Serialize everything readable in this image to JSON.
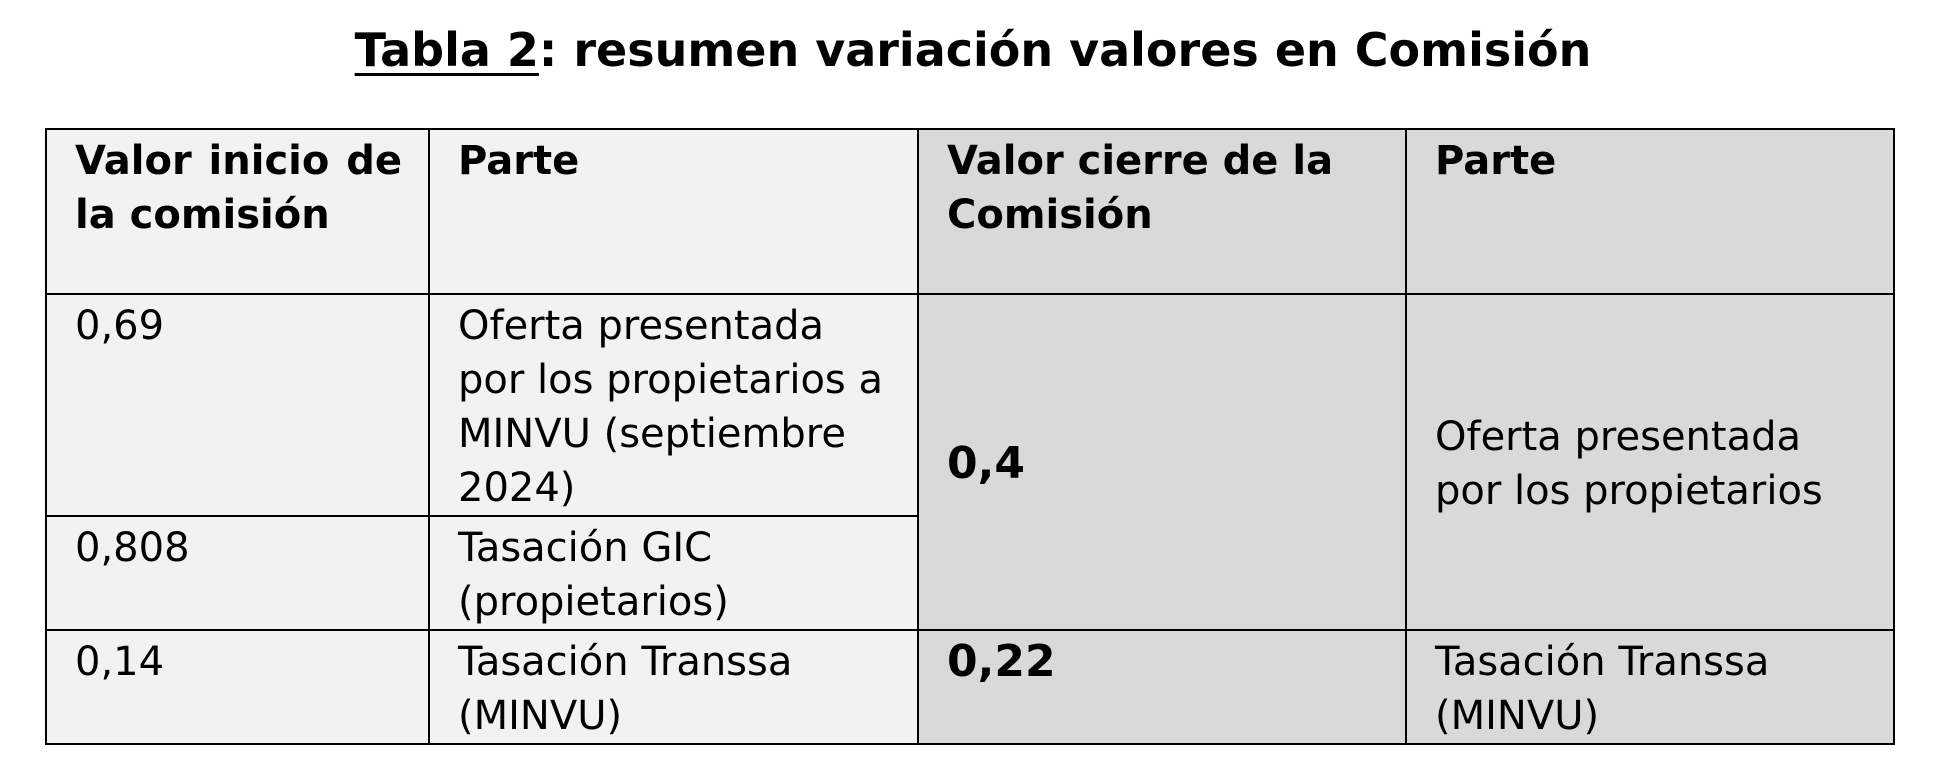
{
  "title": {
    "label": "Tabla 2",
    "text": ": resumen variación valores en Comisión"
  },
  "table": {
    "header": [
      "Valor inicio de la comisión",
      "Parte",
      "Valor cierre de la Comisión",
      "Parte"
    ],
    "rows": [
      [
        "0,69",
        "Oferta presentada por los propietarios a MINVU (septiembre 2024)",
        "0,4",
        "Oferta presentada por los propietarios"
      ],
      [
        "0,808",
        "Tasación GIC (propietarios)"
      ],
      [
        "0,14",
        "Tasación Transsa (MINVU)",
        "0,22",
        "Tasación Transsa (MINVU)"
      ]
    ]
  }
}
